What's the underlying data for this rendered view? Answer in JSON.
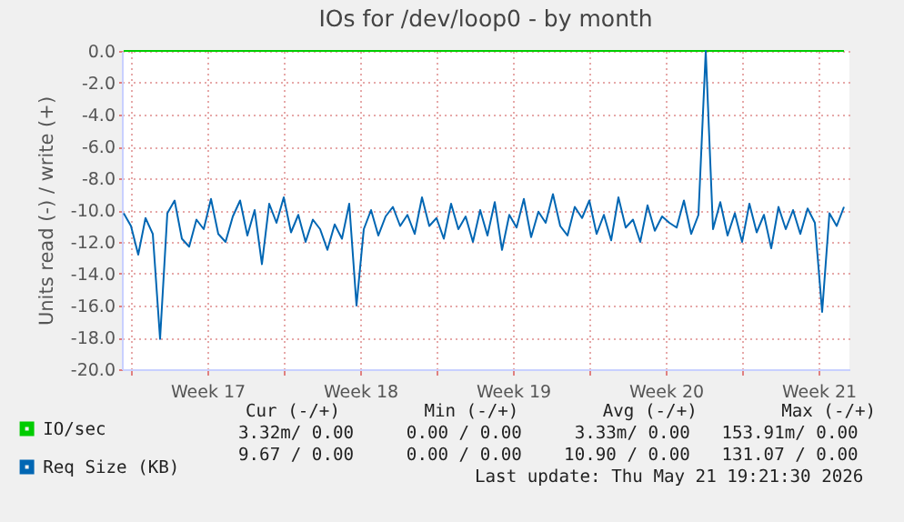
{
  "chart_data": {
    "type": "line",
    "title": "IOs for /dev/loop0 - by month",
    "ylabel": "Units read (-) / write (+)",
    "x": [
      "2026-04-19T16:00",
      "2026-04-20T00:00",
      "2026-04-20T08:00",
      "2026-04-20T16:00",
      "2026-04-21T00:00",
      "2026-04-21T08:00",
      "2026-04-21T16:00",
      "2026-04-22T00:00",
      "2026-04-22T08:00",
      "2026-04-22T16:00",
      "2026-04-23T00:00",
      "2026-04-23T08:00",
      "2026-04-23T16:00",
      "2026-04-24T00:00",
      "2026-04-24T08:00",
      "2026-04-24T16:00",
      "2026-04-25T00:00",
      "2026-04-25T08:00",
      "2026-04-25T16:00",
      "2026-04-26T00:00",
      "2026-04-26T08:00",
      "2026-04-26T16:00",
      "2026-04-27T00:00",
      "2026-04-27T08:00",
      "2026-04-27T16:00",
      "2026-04-28T00:00",
      "2026-04-28T08:00",
      "2026-04-28T16:00",
      "2026-04-29T00:00",
      "2026-04-29T08:00",
      "2026-04-29T16:00",
      "2026-04-30T00:00",
      "2026-04-30T08:00",
      "2026-04-30T16:00",
      "2026-05-01T00:00",
      "2026-05-01T08:00",
      "2026-05-01T16:00",
      "2026-05-02T00:00",
      "2026-05-02T08:00",
      "2026-05-02T16:00",
      "2026-05-03T00:00",
      "2026-05-03T08:00",
      "2026-05-03T16:00",
      "2026-05-04T00:00",
      "2026-05-04T08:00",
      "2026-05-04T16:00",
      "2026-05-05T00:00",
      "2026-05-05T08:00",
      "2026-05-05T16:00",
      "2026-05-06T00:00",
      "2026-05-06T08:00",
      "2026-05-06T16:00",
      "2026-05-07T00:00",
      "2026-05-07T08:00",
      "2026-05-07T16:00",
      "2026-05-08T00:00",
      "2026-05-08T08:00",
      "2026-05-08T16:00",
      "2026-05-09T00:00",
      "2026-05-09T08:00",
      "2026-05-09T16:00",
      "2026-05-10T00:00",
      "2026-05-10T08:00",
      "2026-05-10T16:00",
      "2026-05-11T00:00",
      "2026-05-11T08:00",
      "2026-05-11T16:00",
      "2026-05-12T00:00",
      "2026-05-12T08:00",
      "2026-05-12T16:00",
      "2026-05-13T00:00",
      "2026-05-13T08:00",
      "2026-05-13T16:00",
      "2026-05-14T00:00",
      "2026-05-14T08:00",
      "2026-05-14T16:00",
      "2026-05-15T00:00",
      "2026-05-15T08:00",
      "2026-05-15T16:00",
      "2026-05-16T00:00",
      "2026-05-16T08:00",
      "2026-05-16T16:00",
      "2026-05-17T00:00",
      "2026-05-17T08:00",
      "2026-05-17T16:00",
      "2026-05-18T00:00",
      "2026-05-18T08:00",
      "2026-05-18T16:00",
      "2026-05-19T00:00",
      "2026-05-19T08:00",
      "2026-05-19T16:00",
      "2026-05-20T00:00",
      "2026-05-20T08:00",
      "2026-05-20T16:00",
      "2026-05-21T00:00",
      "2026-05-21T08:00",
      "2026-05-21T16:00",
      "2026-05-22T00:00",
      "2026-05-22T08:00",
      "2026-05-22T16:00"
    ],
    "series": [
      {
        "name": "IO/sec",
        "color": "#00cc00",
        "x": [
          "2026-04-19T16:00",
          "2026-05-22T16:00"
        ],
        "values": [
          0,
          0
        ]
      },
      {
        "name": "Req Size (KB)",
        "color": "#0066b3",
        "values": [
          -10.2,
          -11.0,
          -12.8,
          -10.5,
          -11.5,
          -18.1,
          -10.2,
          -9.4,
          -11.8,
          -12.3,
          -10.6,
          -11.2,
          -9.3,
          -11.5,
          -12.0,
          -10.4,
          -9.4,
          -11.6,
          -10.0,
          -13.4,
          -9.6,
          -10.8,
          -9.2,
          -11.4,
          -10.3,
          -12.0,
          -10.6,
          -11.2,
          -12.5,
          -10.9,
          -11.8,
          -9.6,
          -16.0,
          -11.2,
          -10.0,
          -11.6,
          -10.4,
          -9.8,
          -11.0,
          -10.3,
          -11.5,
          -9.2,
          -11.0,
          -10.5,
          -11.8,
          -9.6,
          -11.2,
          -10.4,
          -12.0,
          -10.0,
          -11.6,
          -9.5,
          -12.5,
          -10.3,
          -11.1,
          -9.3,
          -11.7,
          -10.1,
          -10.8,
          -9.0,
          -11.0,
          -11.6,
          -9.8,
          -10.5,
          -9.4,
          -11.5,
          -10.3,
          -11.9,
          -9.2,
          -11.1,
          -10.6,
          -12.0,
          -9.7,
          -11.3,
          -10.4,
          -10.8,
          -11.1,
          -9.4,
          -11.5,
          -10.3,
          0.0,
          -11.2,
          -9.5,
          -11.6,
          -10.2,
          -12.0,
          -9.6,
          -11.4,
          -10.3,
          -12.4,
          -9.8,
          -11.2,
          -10.0,
          -11.5,
          -9.9,
          -10.8,
          -16.4,
          -10.2,
          -11.0,
          -9.8
        ]
      }
    ],
    "xlim": [
      "2026-04-19T14:00",
      "2026-05-22T22:00"
    ],
    "xticks": [
      {
        "value": "2026-04-20T00:00",
        "label": null
      },
      {
        "value": "2026-04-23T12:00",
        "label": "Week 17"
      },
      {
        "value": "2026-04-27T00:00",
        "label": null
      },
      {
        "value": "2026-04-30T12:00",
        "label": "Week 18"
      },
      {
        "value": "2026-05-04T00:00",
        "label": null
      },
      {
        "value": "2026-05-07T12:00",
        "label": "Week 19"
      },
      {
        "value": "2026-05-11T00:00",
        "label": null
      },
      {
        "value": "2026-05-14T12:00",
        "label": "Week 20"
      },
      {
        "value": "2026-05-18T00:00",
        "label": null
      },
      {
        "value": "2026-05-21T12:00",
        "label": "Week 21"
      }
    ],
    "ylim": [
      -20,
      0
    ],
    "yticks": [
      {
        "value": -20,
        "label": "-20.0"
      },
      {
        "value": -18,
        "label": "-18.0"
      },
      {
        "value": -16,
        "label": "-16.0"
      },
      {
        "value": -14,
        "label": "-14.0"
      },
      {
        "value": -12,
        "label": "-12.0"
      },
      {
        "value": -10,
        "label": "-10.0"
      },
      {
        "value": -8,
        "label": "-8.0"
      },
      {
        "value": -6,
        "label": "-6.0"
      },
      {
        "value": -4,
        "label": "-4.0"
      },
      {
        "value": -2,
        "label": "-2.0"
      },
      {
        "value": 0,
        "label": "0.0"
      }
    ],
    "grid": true,
    "legend": "bottom left",
    "marker": "none",
    "line_style": "solid",
    "annotations": [
      "Cur (-/+)        Min (-/+)        Avg (-/+)        Max (-/+)",
      "3.32m/ 0.00     0.00 / 0.00     3.33m/ 0.00   153.91m/ 0.00",
      "9.67 / 0.00     0.00 / 0.00    10.90 / 0.00   131.07 / 0.00",
      "Last update: Thu May 21 19:21:30 2026"
    ]
  }
}
